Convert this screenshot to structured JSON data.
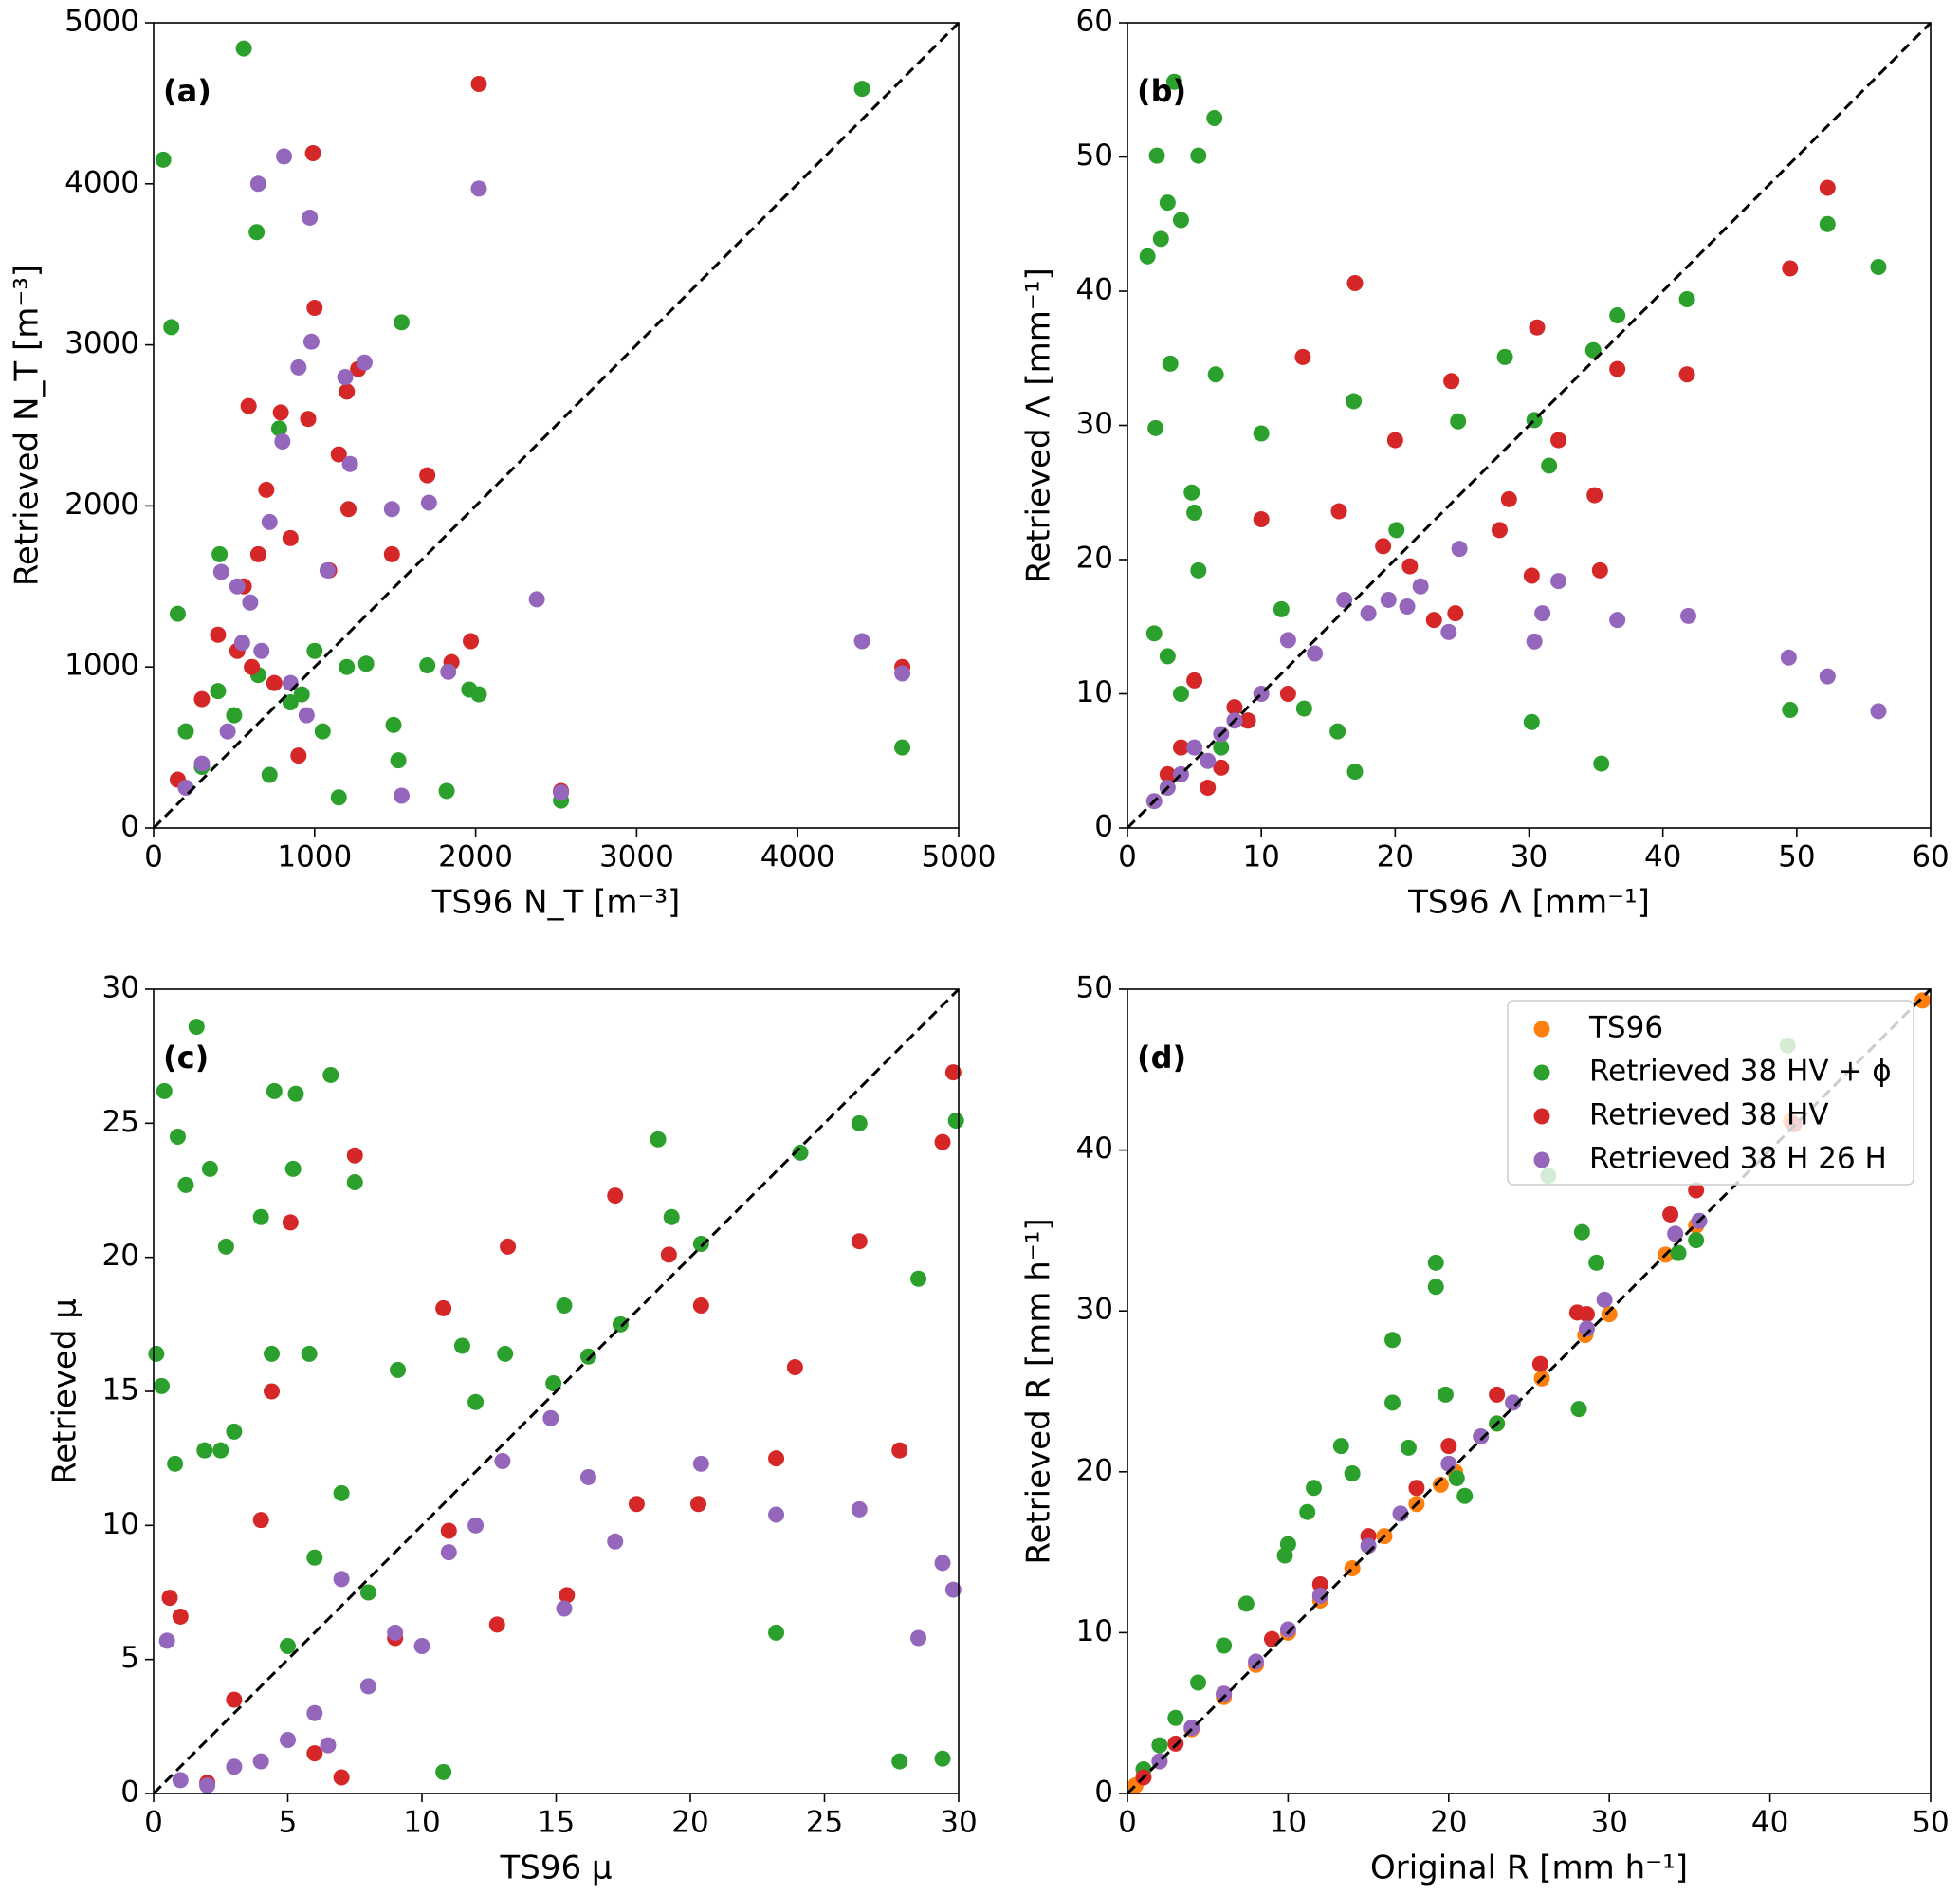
{
  "chart_data": [
    {
      "type": "scatter",
      "annotation": "(a)",
      "xlabel": "TS96 N_T [m⁻³]",
      "ylabel": "Retrieved N_T [m⁻³]",
      "xlim": [
        0,
        5000
      ],
      "ylim": [
        0,
        5000
      ],
      "xticks": [
        0,
        1000,
        2000,
        3000,
        4000,
        5000
      ],
      "yticks": [
        0,
        1000,
        2000,
        3000,
        4000,
        5000
      ],
      "series": [
        {
          "color": "#2ca02c",
          "x": [
            560,
            60,
            110,
            640,
            150,
            410,
            1540,
            4400,
            1700,
            2020,
            1960,
            1490,
            1820,
            2530,
            4650,
            920,
            1000,
            1200,
            780,
            300,
            200,
            720,
            500,
            650,
            1050,
            850,
            1320,
            400,
            1150,
            1520
          ],
          "values": [
            4840,
            4150,
            3110,
            3700,
            1330,
            1700,
            3140,
            4590,
            1010,
            830,
            860,
            640,
            230,
            170,
            500,
            830,
            1100,
            1000,
            2480,
            380,
            600,
            330,
            700,
            950,
            600,
            780,
            1020,
            850,
            190,
            420
          ]
        },
        {
          "color": "#d62728",
          "x": [
            2020,
            990,
            1000,
            790,
            590,
            960,
            1270,
            1200,
            1700,
            1480,
            1970,
            1850,
            4650,
            2530,
            560,
            700,
            850,
            1090,
            400,
            300,
            750,
            610,
            1150,
            1210,
            650,
            150,
            900,
            520
          ],
          "values": [
            4620,
            4190,
            3230,
            2580,
            2620,
            2540,
            2850,
            2710,
            2190,
            1700,
            1160,
            1030,
            1000,
            230,
            1500,
            2100,
            1800,
            1600,
            1200,
            800,
            900,
            1000,
            2320,
            1980,
            1700,
            300,
            450,
            1100
          ]
        },
        {
          "color": "#9467bd",
          "x": [
            2020,
            810,
            650,
            970,
            980,
            900,
            1310,
            1190,
            1710,
            1480,
            2380,
            4400,
            4650,
            1540,
            1830,
            2530,
            520,
            420,
            720,
            600,
            800,
            1080,
            1220,
            550,
            300,
            200,
            850,
            950,
            670,
            460
          ],
          "values": [
            3970,
            4170,
            4000,
            3790,
            3020,
            2860,
            2890,
            2800,
            2020,
            1980,
            1420,
            1160,
            960,
            200,
            970,
            220,
            1500,
            1590,
            1900,
            1400,
            2400,
            1600,
            2260,
            1150,
            400,
            250,
            900,
            700,
            1100,
            600
          ]
        }
      ]
    },
    {
      "type": "scatter",
      "annotation": "(b)",
      "xlabel": "TS96 Λ [mm⁻¹]",
      "ylabel": "Retrieved Λ [mm⁻¹]",
      "xlim": [
        0,
        60
      ],
      "ylim": [
        0,
        60
      ],
      "xticks": [
        0,
        10,
        20,
        30,
        40,
        50,
        60
      ],
      "yticks": [
        0,
        10,
        20,
        30,
        40,
        50,
        60
      ],
      "series": [
        {
          "color": "#2ca02c",
          "x": [
            3.5,
            1.5,
            2.2,
            3,
            2.5,
            4,
            5.3,
            6.5,
            2.1,
            3.2,
            4.8,
            5,
            6.6,
            5.3,
            10,
            16.9,
            24.7,
            28.2,
            30.4,
            31.5,
            34.8,
            36.6,
            41.8,
            52.3,
            56.1,
            49.5,
            35.4,
            30.2,
            20.1,
            17,
            11.5,
            2,
            3,
            4,
            13.2,
            15.7,
            7,
            9
          ],
          "values": [
            55.6,
            42.6,
            50.1,
            46.6,
            43.9,
            45.3,
            50.1,
            52.9,
            29.8,
            34.6,
            25,
            23.5,
            33.8,
            19.2,
            29.4,
            31.8,
            30.3,
            35.1,
            30.4,
            27,
            35.6,
            38.2,
            39.4,
            45,
            41.8,
            8.8,
            4.8,
            7.9,
            22.2,
            4.2,
            16.3,
            14.5,
            12.8,
            10,
            8.9,
            7.2,
            6,
            8
          ]
        },
        {
          "color": "#d62728",
          "x": [
            17,
            13.1,
            30.6,
            24.2,
            32.2,
            36.6,
            41.8,
            49.5,
            52.3,
            34.9,
            35.3,
            30.2,
            28.5,
            27.8,
            24.5,
            22.9,
            21.1,
            20,
            19.1,
            15.8,
            10,
            5,
            8,
            3,
            6,
            12,
            4,
            7,
            9
          ],
          "values": [
            40.6,
            35.1,
            37.3,
            33.3,
            28.9,
            34.2,
            33.8,
            41.7,
            47.7,
            24.8,
            19.2,
            18.8,
            24.5,
            22.2,
            16,
            15.5,
            19.5,
            28.9,
            21,
            23.6,
            23,
            11,
            9,
            4,
            3,
            10,
            6,
            4.5,
            8
          ]
        },
        {
          "color": "#9467bd",
          "x": [
            24.8,
            31,
            32.2,
            36.6,
            41.9,
            49.4,
            52.3,
            56.1,
            30.4,
            20.9,
            21.9,
            19.5,
            24,
            16.2,
            12,
            8,
            5,
            3,
            6,
            10,
            7,
            4,
            2,
            14,
            18
          ],
          "values": [
            20.8,
            16,
            18.4,
            15.5,
            15.8,
            12.7,
            11.3,
            8.7,
            13.9,
            16.5,
            18,
            17,
            14.6,
            17,
            14,
            8,
            6,
            3,
            5,
            10,
            7,
            4,
            2,
            13,
            16
          ]
        }
      ]
    },
    {
      "type": "scatter",
      "annotation": "(c)",
      "xlabel": "TS96 μ",
      "ylabel": "Retrieved μ",
      "xlim": [
        0,
        30
      ],
      "ylim": [
        0,
        30
      ],
      "xticks": [
        0,
        5,
        10,
        15,
        20,
        25,
        30
      ],
      "yticks": [
        0,
        5,
        10,
        15,
        20,
        25,
        30
      ],
      "series": [
        {
          "color": "#2ca02c",
          "x": [
            0.1,
            0.3,
            0.9,
            1.2,
            1.6,
            2.1,
            2.7,
            0.4,
            0.8,
            1.9,
            4.5,
            5.3,
            6.6,
            7.5,
            4,
            5.2,
            4.4,
            5.8,
            9.1,
            11.5,
            13.1,
            15.3,
            18.8,
            19.3,
            20.4,
            24.1,
            26.3,
            28.5,
            29.9,
            27.8,
            29.4,
            23.2,
            10.8,
            16.2,
            17.4,
            14.9,
            12,
            3,
            2.5,
            7,
            6,
            8,
            5
          ],
          "values": [
            16.4,
            15.2,
            24.5,
            22.7,
            28.6,
            23.3,
            20.4,
            26.2,
            12.3,
            12.8,
            26.2,
            26.1,
            26.8,
            22.8,
            21.5,
            23.3,
            16.4,
            16.4,
            15.8,
            16.7,
            16.4,
            18.2,
            24.4,
            21.5,
            20.5,
            23.9,
            25,
            19.2,
            25.1,
            1.2,
            1.3,
            6,
            0.8,
            16.3,
            17.5,
            15.3,
            14.6,
            13.5,
            12.8,
            11.2,
            8.8,
            7.5,
            5.5
          ]
        },
        {
          "color": "#d62728",
          "x": [
            5.1,
            7.5,
            4.4,
            10.8,
            13.2,
            17.2,
            19.2,
            20.4,
            23.9,
            26.3,
            29.8,
            29.4,
            27.8,
            23.2,
            20.3,
            18,
            15.4,
            12.8,
            11,
            9,
            7,
            4,
            1,
            0.6,
            3,
            6,
            2
          ],
          "values": [
            21.3,
            23.8,
            15,
            18.1,
            20.4,
            22.3,
            20.1,
            18.2,
            15.9,
            20.6,
            26.9,
            24.3,
            12.8,
            12.5,
            10.8,
            10.8,
            7.4,
            6.3,
            9.8,
            5.8,
            0.6,
            10.2,
            6.6,
            7.3,
            3.5,
            1.5,
            0.4
          ]
        },
        {
          "color": "#9467bd",
          "x": [
            29.4,
            29.8,
            28.5,
            26.3,
            23.2,
            20.4,
            17.2,
            16.2,
            15.3,
            14.8,
            13,
            11,
            9,
            7,
            5,
            3,
            1,
            0.5,
            2,
            4,
            6,
            8,
            10,
            12,
            6.5
          ],
          "values": [
            8.6,
            7.6,
            5.8,
            10.6,
            10.4,
            12.3,
            9.4,
            11.8,
            6.9,
            14,
            12.4,
            9,
            6,
            8,
            2,
            1,
            0.5,
            5.7,
            0.3,
            1.2,
            3,
            4,
            5.5,
            10,
            1.8
          ]
        }
      ]
    },
    {
      "type": "scatter",
      "annotation": "(d)",
      "xlabel": "Original R [mm h⁻¹]",
      "ylabel": "Retrieved R [mm h⁻¹]",
      "xlim": [
        0,
        50
      ],
      "ylim": [
        0,
        50
      ],
      "xticks": [
        0,
        10,
        20,
        30,
        40,
        50
      ],
      "yticks": [
        0,
        10,
        20,
        30,
        40,
        50
      ],
      "legend": "upper right",
      "series": [
        {
          "name": "TS96",
          "color": "#ff7f0e",
          "x": [
            0.5,
            2,
            4,
            6,
            8,
            10,
            12,
            14,
            16,
            18,
            19.5,
            20.4,
            23,
            25.8,
            28.5,
            30,
            33.5,
            35.4,
            41.3,
            49.5
          ],
          "values": [
            0.5,
            2,
            4,
            6,
            8,
            10,
            12,
            14,
            16,
            18,
            19.2,
            20,
            23,
            25.8,
            28.5,
            29.8,
            33.5,
            35.3,
            41.8,
            49.3
          ]
        },
        {
          "name": "Retrieved 38 HV + ϕ",
          "color": "#2ca02c",
          "x": [
            41.1,
            26.2,
            28.3,
            29.2,
            19.2,
            19.2,
            16.5,
            16.5,
            13.3,
            11.6,
            11.2,
            10,
            9.8,
            7.4,
            6,
            4.4,
            3,
            2,
            1,
            14,
            17.5,
            19.8,
            20.5,
            21,
            28.1,
            34.3,
            35.4,
            23
          ],
          "values": [
            46.5,
            38.4,
            34.9,
            33,
            33,
            31.5,
            28.2,
            24.3,
            21.6,
            19,
            17.5,
            15.5,
            14.8,
            11.8,
            9.2,
            6.9,
            4.7,
            3,
            1.5,
            19.9,
            21.5,
            24.8,
            19.6,
            18.5,
            23.9,
            33.6,
            34.4,
            23
          ]
        },
        {
          "name": "Retrieved 38 HV",
          "color": "#d62728",
          "x": [
            41.5,
            35.4,
            33.8,
            28,
            28.6,
            25.7,
            23,
            20,
            18,
            15,
            12,
            9,
            6,
            3,
            1
          ],
          "values": [
            41.6,
            37.5,
            36,
            29.9,
            29.8,
            26.7,
            24.8,
            21.6,
            19,
            16,
            13,
            9.6,
            6.2,
            3.1,
            1
          ]
        },
        {
          "name": "Retrieved 38 H 26 H",
          "color": "#9467bd",
          "x": [
            29.7,
            34.1,
            35.6,
            28.6,
            22,
            20,
            17,
            15,
            12,
            10,
            8,
            6,
            4,
            2,
            24
          ],
          "values": [
            30.7,
            34.8,
            35.6,
            28.9,
            22.2,
            20.5,
            17.4,
            15.4,
            12.3,
            10.2,
            8.2,
            6.2,
            4.1,
            2,
            24.3
          ]
        }
      ]
    }
  ]
}
